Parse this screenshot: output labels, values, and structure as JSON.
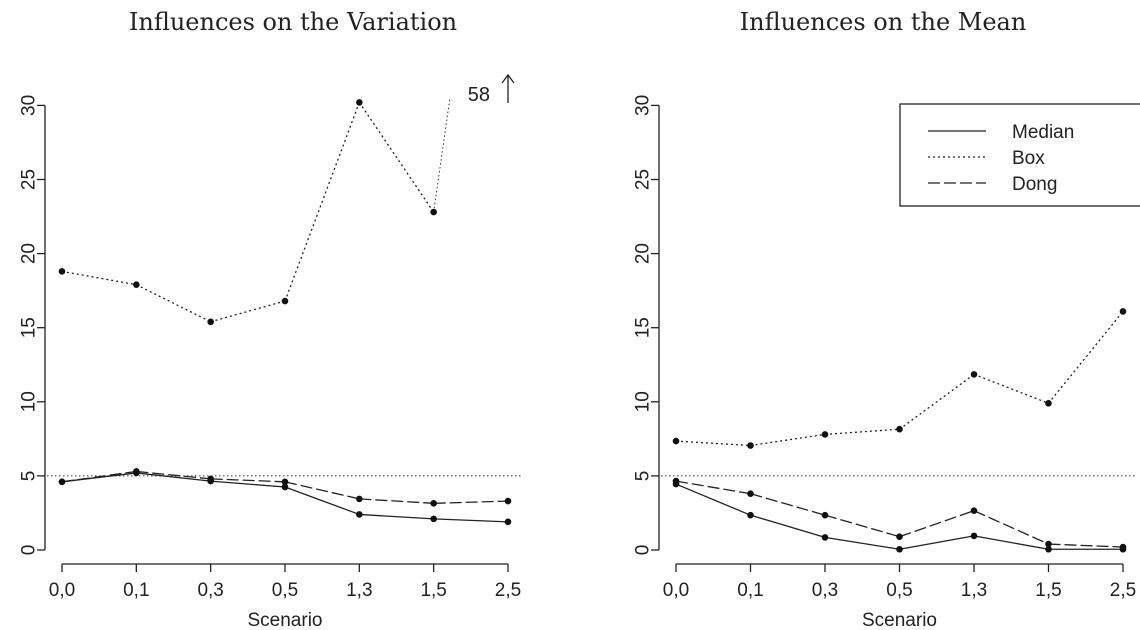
{
  "chart_data": [
    {
      "type": "line",
      "title": "Influences on the Variation",
      "xlabel": "Scenario",
      "ylabel": "",
      "categories": [
        "0,0",
        "0,1",
        "0,3",
        "0,5",
        "1,3",
        "1,5",
        "2,5"
      ],
      "ylim": [
        0,
        32
      ],
      "yticks": [
        0,
        5,
        10,
        15,
        20,
        25,
        30
      ],
      "reference_line": 5,
      "series": [
        {
          "name": "Median",
          "style": "solid",
          "values": [
            4.6,
            5.2,
            4.65,
            4.25,
            2.4,
            2.1,
            1.9
          ]
        },
        {
          "name": "Box",
          "style": "dotted",
          "values": [
            18.8,
            17.9,
            15.4,
            16.8,
            30.2,
            22.8,
            58
          ]
        },
        {
          "name": "Dong",
          "style": "dashed",
          "values": [
            4.6,
            5.3,
            4.8,
            4.6,
            3.45,
            3.15,
            3.3
          ]
        }
      ],
      "annotation": {
        "text": "58",
        "category": "2,5"
      },
      "legend": null
    },
    {
      "type": "line",
      "title": "Influences on the Mean",
      "xlabel": "Scenario",
      "ylabel": "",
      "categories": [
        "0,0",
        "0,1",
        "0,3",
        "0,5",
        "1,3",
        "1,5",
        "2,5"
      ],
      "ylim": [
        0,
        32
      ],
      "yticks": [
        0,
        5,
        10,
        15,
        20,
        25,
        30
      ],
      "reference_line": 5,
      "series": [
        {
          "name": "Median",
          "style": "solid",
          "values": [
            4.45,
            2.35,
            0.85,
            0.05,
            0.95,
            0.05,
            0.05
          ]
        },
        {
          "name": "Box",
          "style": "dotted",
          "values": [
            7.35,
            7.05,
            7.8,
            8.15,
            11.85,
            9.9,
            16.1
          ]
        },
        {
          "name": "Dong",
          "style": "dashed",
          "values": [
            4.65,
            3.8,
            2.35,
            0.9,
            2.65,
            0.4,
            0.2
          ]
        }
      ],
      "legend": "top-right"
    }
  ]
}
